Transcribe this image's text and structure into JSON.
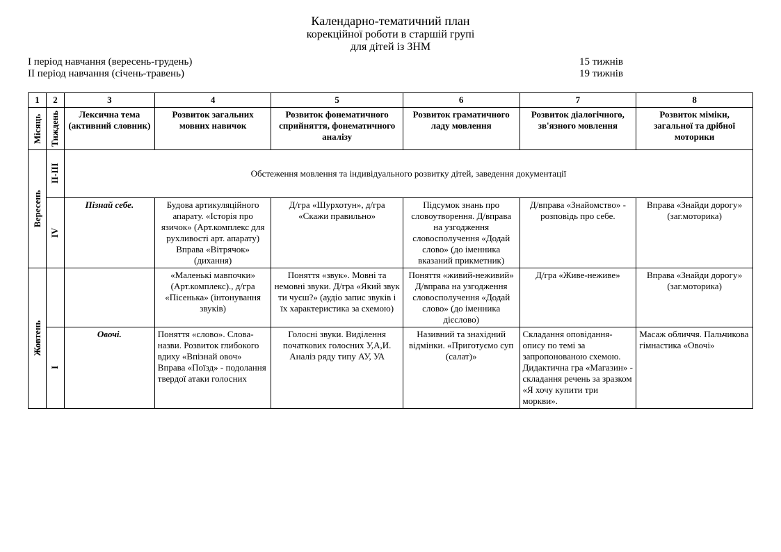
{
  "title": {
    "main": "Календарно-тематичний план",
    "sub1": "корекційної роботи в старшій групі",
    "sub2": "для дітей із ЗНМ"
  },
  "periods": [
    {
      "label": "І період навчання (вересень-грудень)",
      "weeks": "15 тижнів"
    },
    {
      "label": "ІІ період навчання (січень-травень)",
      "weeks": "19 тижнів"
    }
  ],
  "colnums": [
    "1",
    "2",
    "3",
    "4",
    "5",
    "6",
    "7",
    "8"
  ],
  "headers": {
    "c1": "Місяць",
    "c2": "Тиждень",
    "c3": "Лексична тема (активний словник)",
    "c4": "Розвиток загальних мовних навичок",
    "c5": "Розвиток фонематичного сприйняття, фонематичного аналізу",
    "c6": "Розвиток граматичного ладу мовлення",
    "c7": "Розвиток діалогічного, зв'язного мовлення",
    "c8": "Розвиток міміки, загальної та дрібної моторики"
  },
  "months": {
    "sep": "Вересень",
    "oct": "Жовтень"
  },
  "weeks": {
    "w23": "ІІ-ІІІ",
    "w4": "ІV",
    "w1": "І"
  },
  "survey_row": "Обстеження мовлення та індивідуального розвитку дітей, заведення документації",
  "rows": {
    "r1": {
      "topic": "Пізнай себе.",
      "c4": "Будова артикуляційного апарату. «Історія про язичок» (Арт.комплекс для рухливості арт. апарату) Вправа «Вітрячок» (дихання)",
      "c5": "Д/гра «Шурхотун», д/гра «Скажи правильно»",
      "c6": "Підсумок знань про словоутворення. Д/вправа на узгодження словосполучення «Додай слово» (до іменника вказаний прикметник)",
      "c7": "Д/вправа «Знайомство» - розповідь про себе.",
      "c8": "Вправа «Знайди дорогу» (заг.моторика)"
    },
    "r2": {
      "c4": "«Маленькі мавпочки» (Арт.комплекс)., д/гра «Пісенька» (інтонування звуків)",
      "c5": "Поняття «звук». Мовні та немовні звуки. Д/гра «Який звук ти чуєш?» (аудіо запис звуків і їх характеристика за схемою)",
      "c6": "Поняття «живий-неживий» Д/вправа на узгодження словосполучення «Додай слово» (до іменника дієслово)",
      "c7": "Д/гра «Живе-неживе»",
      "c8": "Вправа «Знайди дорогу» (заг.моторика)"
    },
    "r3": {
      "topic": "Овочі.",
      "c4": "   Поняття «слово». Слова-назви. Розвиток глибокого вдиху «Впізнай овоч»\n    Вправа «Поїзд» - подолання твердої атаки голосних",
      "c5": "Голосні  звуки. Виділення початкових  голосних У,А,И. Аналіз  ряду  типу АУ, УА",
      "c6": "Називний та знахідний відмінки. «Приготуємо суп (салат)»",
      "c7": "Складання оповідання-опису по темі за запропонованою схемою.\nДидактична гра «Магазин» - складання речень за зразком «Я хочу купити  три моркви».",
      "c8": "Масаж  обличчя. Пальчикова гімнастика «Овочі»"
    }
  }
}
